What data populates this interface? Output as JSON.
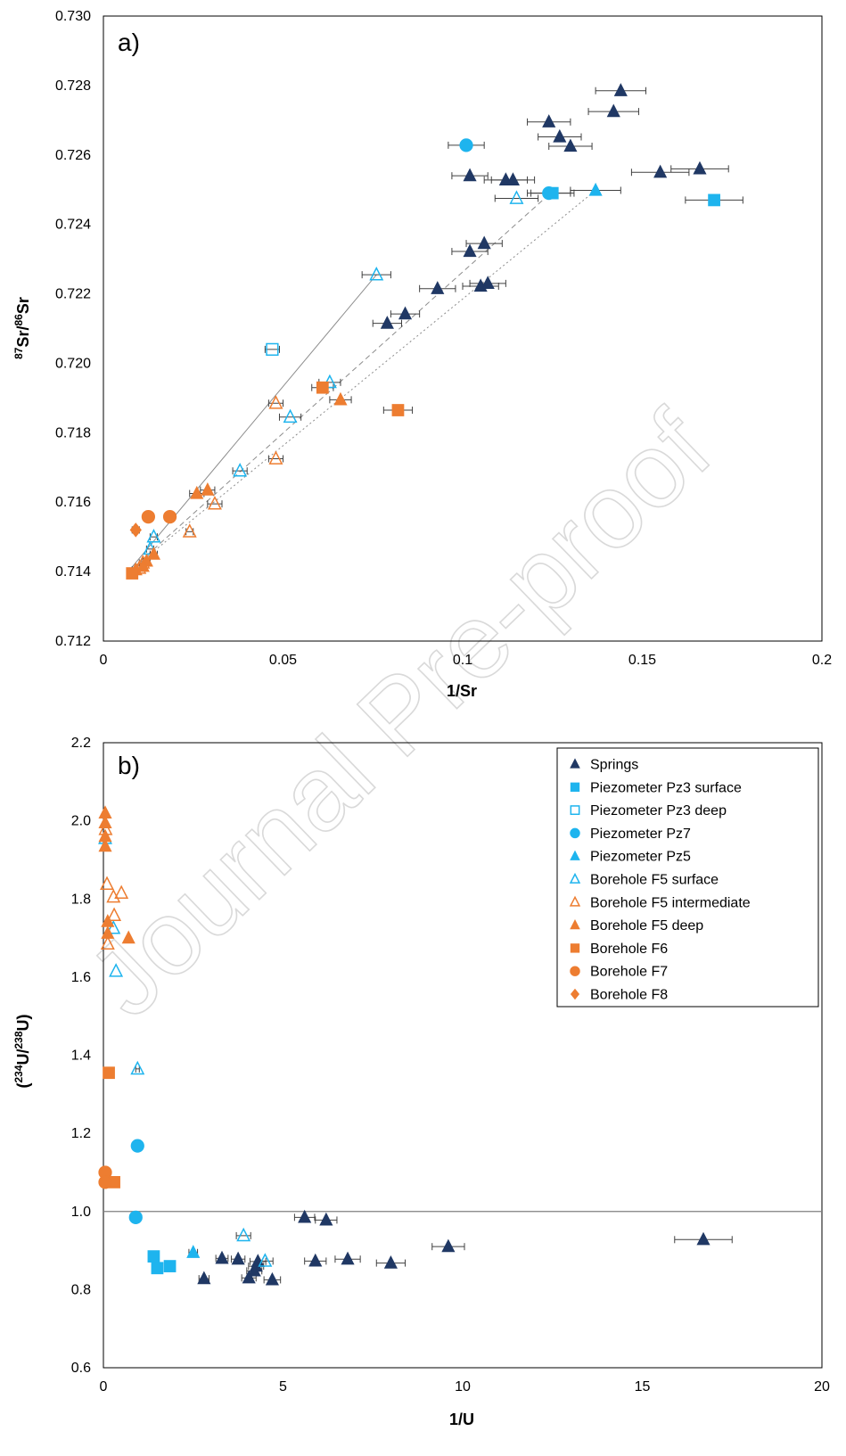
{
  "watermark": "Journal Pre-proof",
  "series_styles": [
    {
      "name": "Springs",
      "marker": "triangle",
      "fill": "#203864",
      "stroke": "#203864"
    },
    {
      "name": "Piezometer Pz3 surface",
      "marker": "square",
      "fill": "#1eb4ee",
      "stroke": "#1eb4ee"
    },
    {
      "name": "Piezometer Pz3 deep",
      "marker": "square",
      "fill": "none",
      "stroke": "#1eb4ee"
    },
    {
      "name": "Piezometer Pz7",
      "marker": "circle",
      "fill": "#1eb4ee",
      "stroke": "#1eb4ee"
    },
    {
      "name": "Piezometer Pz5",
      "marker": "triangle",
      "fill": "#1eb4ee",
      "stroke": "#1eb4ee"
    },
    {
      "name": "Borehole F5 surface",
      "marker": "triangle",
      "fill": "none",
      "stroke": "#1eb4ee"
    },
    {
      "name": "Borehole F5 intermediate",
      "marker": "triangle",
      "fill": "none",
      "stroke": "#ed7d31"
    },
    {
      "name": "Borehole F5 deep",
      "marker": "triangle",
      "fill": "#ed7d31",
      "stroke": "#ed7d31"
    },
    {
      "name": "Borehole F6",
      "marker": "square",
      "fill": "#ed7d31",
      "stroke": "#ed7d31"
    },
    {
      "name": "Borehole F7",
      "marker": "circle",
      "fill": "#ed7d31",
      "stroke": "#ed7d31"
    },
    {
      "name": "Borehole F8",
      "marker": "diamond",
      "fill": "#ed7d31",
      "stroke": "#ed7d31"
    }
  ],
  "chart_data": [
    {
      "panel": "a)",
      "type": "scatter",
      "xlabel": "1/Sr",
      "ylabel_parts": {
        "sup1": "87",
        "mid": "Sr/",
        "sup2": "86",
        "end": "Sr"
      },
      "xlim": [
        0,
        0.2
      ],
      "ylim": [
        0.712,
        0.73
      ],
      "xticks": [
        0,
        0.05,
        0.1,
        0.15,
        0.2
      ],
      "xtick_labels": [
        "0",
        "0.05",
        "0.1",
        "0.15",
        "0.2"
      ],
      "yticks": [
        0.712,
        0.714,
        0.716,
        0.718,
        0.72,
        0.722,
        0.724,
        0.726,
        0.728,
        0.73
      ],
      "ytick_labels": [
        "0.712",
        "0.714",
        "0.716",
        "0.718",
        "0.720",
        "0.722",
        "0.724",
        "0.726",
        "0.728",
        "0.730"
      ],
      "grid": false,
      "mixing_lines": [
        {
          "style": "solid",
          "points": [
            [
              0.0065,
              0.71395
            ],
            [
              0.076,
              0.72255
            ]
          ]
        },
        {
          "style": "dashed",
          "points": [
            [
              0.0065,
              0.71395
            ],
            [
              0.125,
              0.72495
            ]
          ]
        },
        {
          "style": "dotted",
          "points": [
            [
              0.0065,
              0.71395
            ],
            [
              0.137,
              0.72498
            ]
          ]
        }
      ],
      "series": [
        {
          "name": "Springs",
          "points": [
            {
              "x": 0.144,
              "y": 0.72785,
              "xerr": 0.007
            },
            {
              "x": 0.142,
              "y": 0.72725,
              "xerr": 0.007
            },
            {
              "x": 0.124,
              "y": 0.72695,
              "xerr": 0.006
            },
            {
              "x": 0.127,
              "y": 0.72652,
              "xerr": 0.006
            },
            {
              "x": 0.13,
              "y": 0.72625,
              "xerr": 0.006
            },
            {
              "x": 0.102,
              "y": 0.7254,
              "xerr": 0.005
            },
            {
              "x": 0.112,
              "y": 0.72528,
              "xerr": 0.006
            },
            {
              "x": 0.114,
              "y": 0.72528,
              "xerr": 0.006
            },
            {
              "x": 0.155,
              "y": 0.7255,
              "xerr": 0.008
            },
            {
              "x": 0.166,
              "y": 0.7256,
              "xerr": 0.008
            },
            {
              "x": 0.106,
              "y": 0.72345,
              "xerr": 0.005
            },
            {
              "x": 0.102,
              "y": 0.72322,
              "xerr": 0.005
            },
            {
              "x": 0.107,
              "y": 0.7223,
              "xerr": 0.005
            },
            {
              "x": 0.105,
              "y": 0.72222,
              "xerr": 0.005
            },
            {
              "x": 0.093,
              "y": 0.72215,
              "xerr": 0.005
            },
            {
              "x": 0.084,
              "y": 0.72142,
              "xerr": 0.004
            },
            {
              "x": 0.079,
              "y": 0.72115,
              "xerr": 0.004
            }
          ]
        },
        {
          "name": "Piezometer Pz3 surface",
          "points": [
            {
              "x": 0.17,
              "y": 0.7247,
              "xerr": 0.008
            },
            {
              "x": 0.125,
              "y": 0.7249,
              "xerr": 0.006
            }
          ]
        },
        {
          "name": "Piezometer Pz3 deep",
          "points": [
            {
              "x": 0.047,
              "y": 0.7204,
              "xerr": 0.002
            }
          ]
        },
        {
          "name": "Piezometer Pz7",
          "points": [
            {
              "x": 0.101,
              "y": 0.72628,
              "xerr": 0.005
            },
            {
              "x": 0.124,
              "y": 0.7249,
              "xerr": 0.006
            }
          ]
        },
        {
          "name": "Piezometer Pz5",
          "points": [
            {
              "x": 0.137,
              "y": 0.72498,
              "xerr": 0.007
            }
          ]
        },
        {
          "name": "Borehole F5 surface",
          "points": [
            {
              "x": 0.076,
              "y": 0.72255,
              "xerr": 0.004
            },
            {
              "x": 0.115,
              "y": 0.72475,
              "xerr": 0.006
            },
            {
              "x": 0.063,
              "y": 0.71945,
              "xerr": 0.003
            },
            {
              "x": 0.052,
              "y": 0.71845,
              "xerr": 0.003
            },
            {
              "x": 0.038,
              "y": 0.7169,
              "xerr": 0.002
            },
            {
              "x": 0.014,
              "y": 0.715,
              "xerr": 0.001
            },
            {
              "x": 0.013,
              "y": 0.71465,
              "xerr": 0.001
            }
          ]
        },
        {
          "name": "Borehole F5 intermediate",
          "points": [
            {
              "x": 0.048,
              "y": 0.71885,
              "xerr": 0.002
            },
            {
              "x": 0.048,
              "y": 0.71725,
              "xerr": 0.002
            },
            {
              "x": 0.031,
              "y": 0.71595,
              "xerr": 0.002
            },
            {
              "x": 0.024,
              "y": 0.71515,
              "xerr": 0.001
            },
            {
              "x": 0.011,
              "y": 0.71425,
              "xerr": 0.001
            },
            {
              "x": 0.01,
              "y": 0.7141,
              "xerr": 0.001
            }
          ]
        },
        {
          "name": "Borehole F5 deep",
          "points": [
            {
              "x": 0.066,
              "y": 0.71895,
              "xerr": 0.003
            },
            {
              "x": 0.029,
              "y": 0.71635,
              "xerr": 0.002
            },
            {
              "x": 0.026,
              "y": 0.71625,
              "xerr": 0.002
            },
            {
              "x": 0.014,
              "y": 0.7145,
              "xerr": 0.001
            },
            {
              "x": 0.012,
              "y": 0.7143,
              "xerr": 0.001
            },
            {
              "x": 0.011,
              "y": 0.71415,
              "xerr": 0.001
            },
            {
              "x": 0.009,
              "y": 0.71405,
              "xerr": 0.001
            }
          ]
        },
        {
          "name": "Borehole F6",
          "points": [
            {
              "x": 0.061,
              "y": 0.7193,
              "xerr": 0.003
            },
            {
              "x": 0.082,
              "y": 0.71865,
              "xerr": 0.004
            },
            {
              "x": 0.008,
              "y": 0.71395,
              "xerr": 0.001
            }
          ]
        },
        {
          "name": "Borehole F7",
          "points": [
            {
              "x": 0.0125,
              "y": 0.71558,
              "xerr": 0.001
            },
            {
              "x": 0.0185,
              "y": 0.71558,
              "xerr": 0.001
            }
          ]
        },
        {
          "name": "Borehole F8",
          "points": [
            {
              "x": 0.009,
              "y": 0.7152,
              "xerr": 0.001
            }
          ]
        }
      ]
    },
    {
      "panel": "b)",
      "type": "scatter",
      "xlabel": "1/U",
      "ylabel_parts": {
        "pre": "(",
        "sup1": "234",
        "mid": "U/",
        "sup2": "238",
        "end": "U)"
      },
      "xlim": [
        0,
        20
      ],
      "ylim": [
        0.6,
        2.2
      ],
      "xticks": [
        0,
        5,
        10,
        15,
        20
      ],
      "xtick_labels": [
        "0",
        "5",
        "10",
        "15",
        "20"
      ],
      "yticks": [
        0.6,
        0.8,
        1.0,
        1.2,
        1.4,
        1.6,
        1.8,
        2.0,
        2.2
      ],
      "ytick_labels": [
        "0.6",
        "0.8",
        "1.0",
        "1.2",
        "1.4",
        "1.6",
        "1.8",
        "2.0",
        "2.2"
      ],
      "grid": false,
      "reference_line": {
        "y": 1.0
      },
      "legend_position": "top-right",
      "series": [
        {
          "name": "Springs",
          "points": [
            {
              "x": 16.7,
              "y": 0.928,
              "xerr": 0.8
            },
            {
              "x": 9.6,
              "y": 0.91,
              "xerr": 0.45
            },
            {
              "x": 8.0,
              "y": 0.868,
              "xerr": 0.4
            },
            {
              "x": 6.8,
              "y": 0.878,
              "xerr": 0.35
            },
            {
              "x": 5.9,
              "y": 0.873,
              "xerr": 0.3
            },
            {
              "x": 5.6,
              "y": 0.985,
              "xerr": 0.28
            },
            {
              "x": 6.2,
              "y": 0.978,
              "xerr": 0.3
            },
            {
              "x": 4.7,
              "y": 0.825,
              "xerr": 0.23
            },
            {
              "x": 4.3,
              "y": 0.872,
              "xerr": 0.22
            },
            {
              "x": 4.25,
              "y": 0.86,
              "xerr": 0.21
            },
            {
              "x": 4.2,
              "y": 0.848,
              "xerr": 0.21
            },
            {
              "x": 4.05,
              "y": 0.83,
              "xerr": 0.2
            },
            {
              "x": 3.75,
              "y": 0.878,
              "xerr": 0.19
            },
            {
              "x": 3.3,
              "y": 0.88,
              "xerr": 0.17
            },
            {
              "x": 2.8,
              "y": 0.828,
              "xerr": 0.14
            }
          ]
        },
        {
          "name": "Piezometer Pz3 surface",
          "points": [
            {
              "x": 1.4,
              "y": 0.885,
              "xerr": 0.07
            },
            {
              "x": 1.5,
              "y": 0.855,
              "xerr": 0.07
            },
            {
              "x": 1.85,
              "y": 0.86,
              "xerr": 0.09
            }
          ]
        },
        {
          "name": "Piezometer Pz3 deep",
          "points": []
        },
        {
          "name": "Piezometer Pz7",
          "points": [
            {
              "x": 0.95,
              "y": 1.168,
              "xerr": 0.05
            },
            {
              "x": 0.9,
              "y": 0.985,
              "xerr": 0.045
            }
          ]
        },
        {
          "name": "Piezometer Pz5",
          "points": [
            {
              "x": 2.5,
              "y": 0.895,
              "xerr": 0.12
            }
          ]
        },
        {
          "name": "Borehole F5 surface",
          "points": [
            {
              "x": 0.95,
              "y": 1.365,
              "xerr": 0.05
            },
            {
              "x": 0.35,
              "y": 1.615,
              "xerr": 0.02
            },
            {
              "x": 0.28,
              "y": 1.725,
              "xerr": 0.015
            },
            {
              "x": 0.05,
              "y": 1.955,
              "xerr": 0.005
            },
            {
              "x": 3.9,
              "y": 0.938,
              "xerr": 0.2
            },
            {
              "x": 4.5,
              "y": 0.873,
              "xerr": 0.22
            }
          ]
        },
        {
          "name": "Borehole F5 intermediate",
          "points": [
            {
              "x": 0.1,
              "y": 1.838,
              "xerr": 0.005
            },
            {
              "x": 0.5,
              "y": 1.815,
              "xerr": 0.025
            },
            {
              "x": 0.28,
              "y": 1.805,
              "xerr": 0.015
            },
            {
              "x": 0.3,
              "y": 1.758,
              "xerr": 0.015
            },
            {
              "x": 0.12,
              "y": 1.685,
              "xerr": 0.006
            },
            {
              "x": 0.06,
              "y": 1.978,
              "xerr": 0.003
            }
          ]
        },
        {
          "name": "Borehole F5 deep",
          "points": [
            {
              "x": 0.05,
              "y": 2.02,
              "xerr": 0.003
            },
            {
              "x": 0.05,
              "y": 1.995,
              "xerr": 0.003
            },
            {
              "x": 0.05,
              "y": 1.96,
              "xerr": 0.003
            },
            {
              "x": 0.05,
              "y": 1.935,
              "xerr": 0.003
            },
            {
              "x": 0.12,
              "y": 1.742,
              "xerr": 0.006
            },
            {
              "x": 0.12,
              "y": 1.712,
              "xerr": 0.006
            },
            {
              "x": 0.7,
              "y": 1.7,
              "xerr": 0.035
            }
          ]
        },
        {
          "name": "Borehole F6",
          "points": [
            {
              "x": 0.15,
              "y": 1.355,
              "xerr": 0.008
            },
            {
              "x": 0.3,
              "y": 1.075,
              "xerr": 0.015
            }
          ]
        },
        {
          "name": "Borehole F7",
          "points": [
            {
              "x": 0.05,
              "y": 1.1,
              "xerr": 0.003
            },
            {
              "x": 0.05,
              "y": 1.075,
              "xerr": 0.003
            }
          ]
        },
        {
          "name": "Borehole F8",
          "points": []
        }
      ]
    }
  ]
}
